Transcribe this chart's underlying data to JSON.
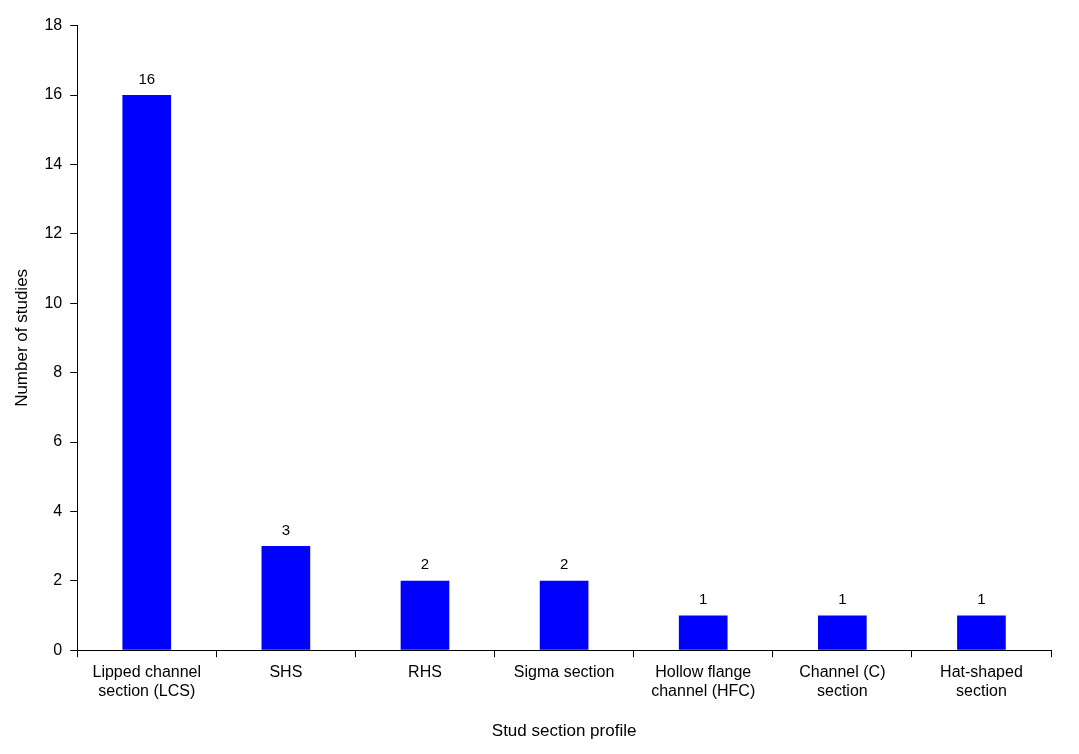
{
  "chart_data": {
    "type": "bar",
    "xlabel": "Stud section profile",
    "ylabel": "Number of studies",
    "categories": [
      "Lipped channel section (LCS)",
      "SHS",
      "RHS",
      "Sigma section",
      "Hollow flange channel (HFC)",
      "Channel (C) section",
      "Hat-shaped section"
    ],
    "values": [
      16,
      3,
      2,
      2,
      1,
      1,
      1
    ],
    "color": "#0000ff",
    "ylim": [
      0,
      18
    ],
    "yticks": [
      0,
      2,
      4,
      6,
      8,
      10,
      12,
      14,
      16,
      18
    ],
    "grid": false,
    "legend": false,
    "data_labels": true
  }
}
